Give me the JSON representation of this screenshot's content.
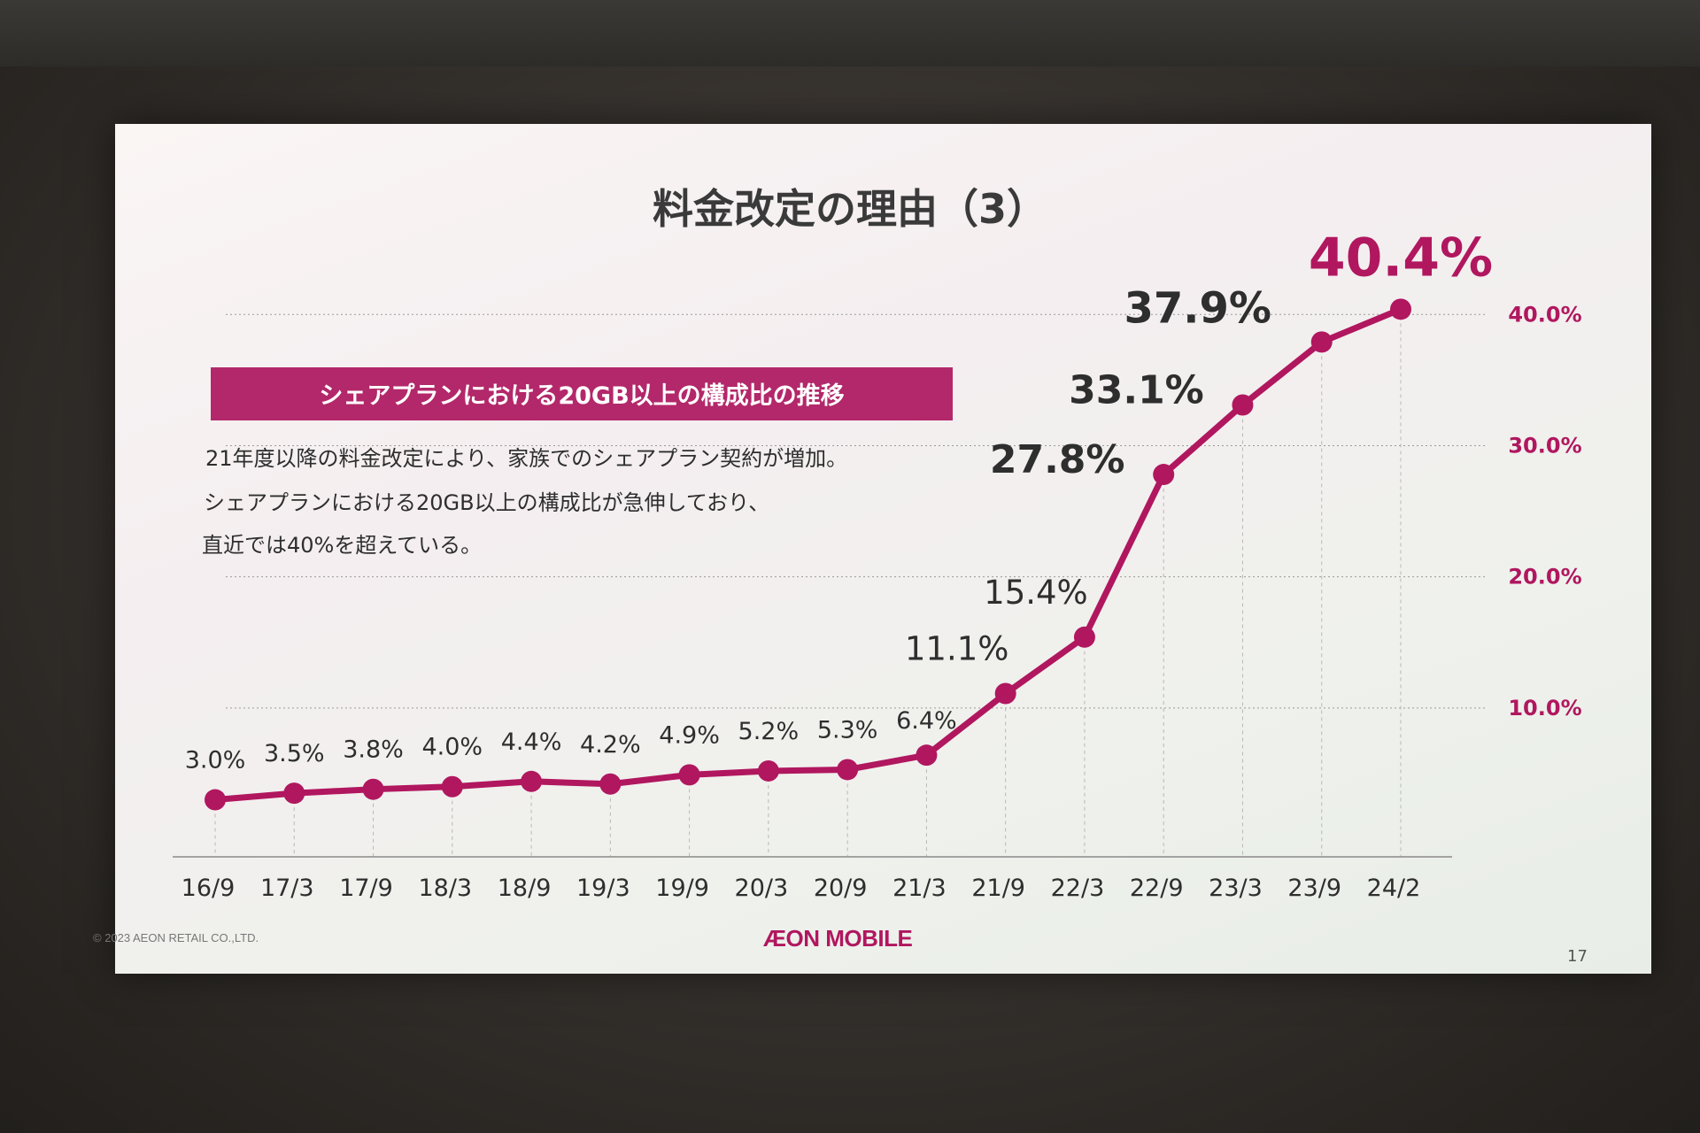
{
  "slide": {
    "title": "料金改定の理由（3）",
    "banner": "シェアプランにおける20GB以上の構成比の推移",
    "body_lines": [
      "21年度以降の料金改定により、家族でのシェアプラン契約が増加。",
      "シェアプランにおける20GB以上の構成比が急伸しており、",
      "直近では40%を超えている。"
    ],
    "copyright": "© 2023 AEON RETAIL CO.,LTD.",
    "logo": "ÆON MOBILE",
    "page_number": "17"
  },
  "colors": {
    "accent": "#b0175f",
    "banner_bg": "#b3286a",
    "text": "#3a3a3a"
  },
  "chart_data": {
    "type": "line",
    "categories": [
      "16/9",
      "17/3",
      "17/9",
      "18/3",
      "18/9",
      "19/3",
      "19/9",
      "20/3",
      "20/9",
      "21/3",
      "21/9",
      "22/3",
      "22/9",
      "23/3",
      "23/9",
      "24/2"
    ],
    "values": [
      3.0,
      3.5,
      3.8,
      4.0,
      4.4,
      4.2,
      4.9,
      5.2,
      5.3,
      6.4,
      11.1,
      15.4,
      27.8,
      33.1,
      37.9,
      40.4
    ],
    "data_labels": [
      "3.0%",
      "3.5%",
      "3.8%",
      "4.0%",
      "4.4%",
      "4.2%",
      "4.9%",
      "5.2%",
      "5.3%",
      "6.4%",
      "11.1%",
      "15.4%",
      "27.8%",
      "33.1%",
      "37.9%",
      "40.4%"
    ],
    "y_ticks": [
      10,
      20,
      30,
      40
    ],
    "y_tick_labels": [
      "10.0%",
      "20.0%",
      "30.0%",
      "40.0%"
    ],
    "ylim": [
      0,
      44
    ],
    "y_axis_side": "right",
    "grid": true
  }
}
